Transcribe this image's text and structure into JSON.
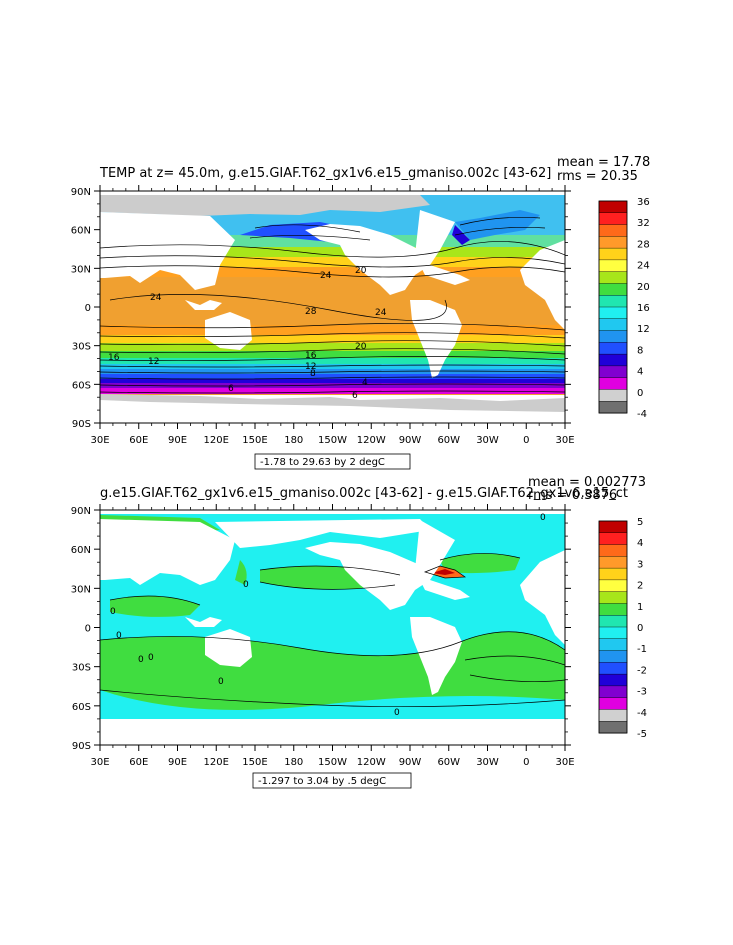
{
  "panels": [
    {
      "title": "TEMP at z=   45.0m, g.e15.GIAF.T62_gx1v6.e15_gmaniso.002c [43-62]",
      "mean": "mean = 17.78",
      "rms": "rms = 20.35",
      "range_label": "-1.78 to 29.63 by 2 degC",
      "lat_ticks": [
        "90N",
        "60N",
        "30N",
        "0",
        "30S",
        "60S",
        "90S"
      ],
      "lon_ticks": [
        "30E",
        "60E",
        "90E",
        "120E",
        "150E",
        "180",
        "150W",
        "120W",
        "90W",
        "60W",
        "30W",
        "0",
        "30E"
      ],
      "colorbar_labels": [
        "36",
        "32",
        "28",
        "24",
        "20",
        "16",
        "12",
        "8",
        "4",
        "0",
        "-4"
      ],
      "colorbar_colors": [
        "#c00000",
        "#ff2020",
        "#ff6a1a",
        "#ff9a2a",
        "#ffd21a",
        "#ffff40",
        "#a8e61a",
        "#40dd40",
        "#20e6b0",
        "#20f0f0",
        "#20c8f0",
        "#2094f0",
        "#2050ff",
        "#2000d8",
        "#8000d0",
        "#e000e0",
        "#d0d0d0",
        "#707070"
      ],
      "contour_labels": [
        "24",
        "20",
        "24",
        "28",
        "24",
        "20",
        "16",
        "12",
        "16",
        "12",
        "8",
        "6",
        "6",
        "4"
      ]
    },
    {
      "title": "g.e15.GIAF.T62_gx1v6.e15_gmaniso.002c [43-62] - g.e15.GIAF.T62_gx1v6.e15_ct",
      "mean": "mean = 0.002773",
      "rms": "rms = 0.3876",
      "range_label": "-1.297 to 3.04 by .5 degC",
      "lat_ticks": [
        "90N",
        "60N",
        "30N",
        "0",
        "30S",
        "60S",
        "90S"
      ],
      "lon_ticks": [
        "30E",
        "60E",
        "90E",
        "120E",
        "150E",
        "180",
        "150W",
        "120W",
        "90W",
        "60W",
        "30W",
        "0",
        "30E"
      ],
      "colorbar_labels": [
        "5",
        "4",
        "3",
        "2",
        "1",
        "0",
        "-1",
        "-2",
        "-3",
        "-4",
        "-5"
      ],
      "colorbar_colors": [
        "#c00000",
        "#ff2020",
        "#ff6a1a",
        "#ff9a2a",
        "#ffd21a",
        "#ffff40",
        "#a8e61a",
        "#40dd40",
        "#20e6b0",
        "#20f0f0",
        "#20c8f0",
        "#2094f0",
        "#2050ff",
        "#2000d8",
        "#8000d0",
        "#e000e0",
        "#d0d0d0",
        "#707070"
      ],
      "contour_labels": [
        "0",
        "0",
        "0",
        "0",
        "0",
        "0",
        "0",
        "0"
      ]
    }
  ]
}
